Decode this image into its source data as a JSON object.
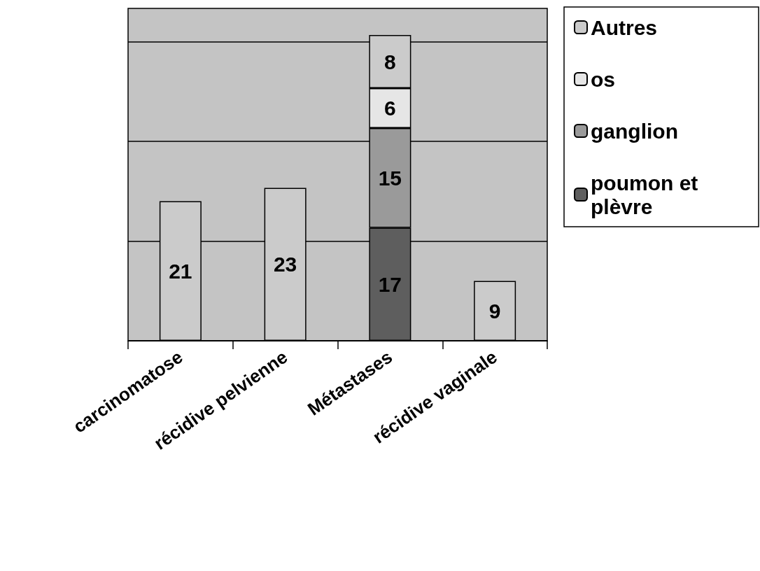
{
  "chart_data": {
    "type": "bar",
    "stacked": true,
    "categories": [
      "carcinomatose",
      "récidive pelvienne",
      "Métastases",
      "récidive vaginale"
    ],
    "series": [
      {
        "name": "poumon et plèvre",
        "color": "#5e5e5e",
        "values": [
          null,
          null,
          17,
          null
        ]
      },
      {
        "name": "ganglion",
        "color": "#9a9a9a",
        "values": [
          null,
          null,
          15,
          null
        ]
      },
      {
        "name": "os",
        "color": "#e6e6e6",
        "values": [
          null,
          null,
          6,
          null
        ]
      },
      {
        "name": "Autres",
        "color": "#cbcbcb",
        "values": [
          21,
          23,
          8,
          9
        ]
      }
    ],
    "ylim": [
      0,
      50
    ],
    "yticks": [
      {
        "value": 0,
        "label": null
      },
      {
        "value": 15,
        "label": null
      },
      {
        "value": 30,
        "label": null
      },
      {
        "value": 45,
        "label": null
      }
    ],
    "grid": "y",
    "tick_labels": "x",
    "legend": "right",
    "data_labels": true
  }
}
